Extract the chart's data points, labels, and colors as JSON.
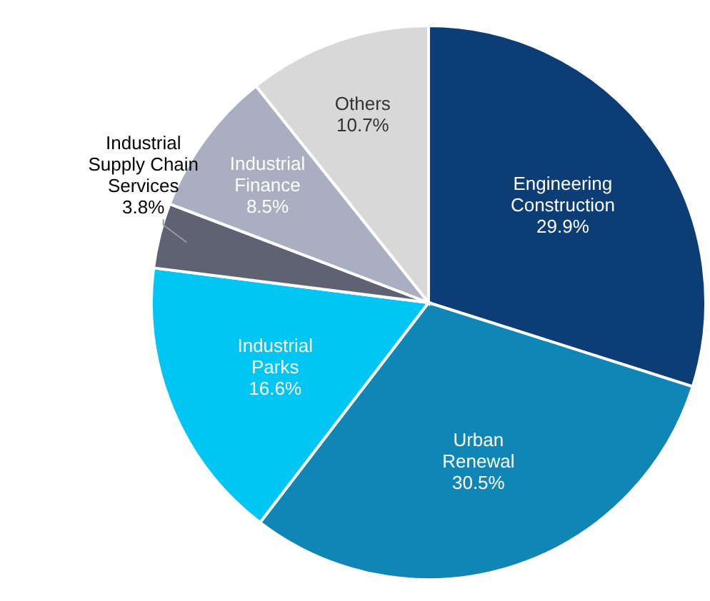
{
  "chart_data": {
    "type": "pie",
    "categories": [
      "Engineering Construction",
      "Urban Renewal",
      "Industrial Parks",
      "Industrial Supply Chain Services",
      "Industrial Finance",
      "Others"
    ],
    "values": [
      29.9,
      30.5,
      16.6,
      3.8,
      8.5,
      10.7
    ],
    "value_labels": [
      "29.9%",
      "30.5%",
      "16.6%",
      "3.8%",
      "8.5%",
      "10.7%"
    ],
    "colors": [
      "#0c3d74",
      "#0f86b6",
      "#00c6f4",
      "#5f6272",
      "#a9aec0",
      "#d8d8d8"
    ]
  }
}
